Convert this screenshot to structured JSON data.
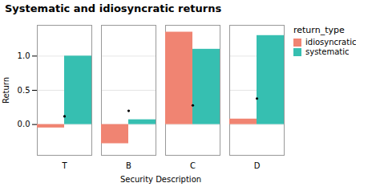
{
  "chart_data": {
    "type": "bar",
    "title": "Systematic and idiosyncratic returns",
    "xlabel": "Security Description",
    "ylabel": "Return",
    "categories": [
      "T",
      "B",
      "C",
      "D"
    ],
    "series": [
      {
        "name": "idiosyncratic",
        "color": "#F08472",
        "values": [
          -0.05,
          -0.28,
          1.35,
          0.08
        ]
      },
      {
        "name": "systematic",
        "color": "#36BFB1",
        "values": [
          1.0,
          0.07,
          1.1,
          1.3
        ]
      },
      {
        "type": "scatter",
        "marker": "point",
        "color": "#000000",
        "values": [
          0.12,
          0.2,
          0.28,
          0.38
        ]
      }
    ],
    "ylim": [
      -0.45,
      1.45
    ],
    "yticks": [
      {
        "value": 0.0,
        "label": "0.0"
      },
      {
        "value": 0.5,
        "label": "0.5"
      },
      {
        "value": 1.0,
        "label": "1.0"
      }
    ],
    "grid": true,
    "legend": "right",
    "legend_title": "return_type"
  }
}
